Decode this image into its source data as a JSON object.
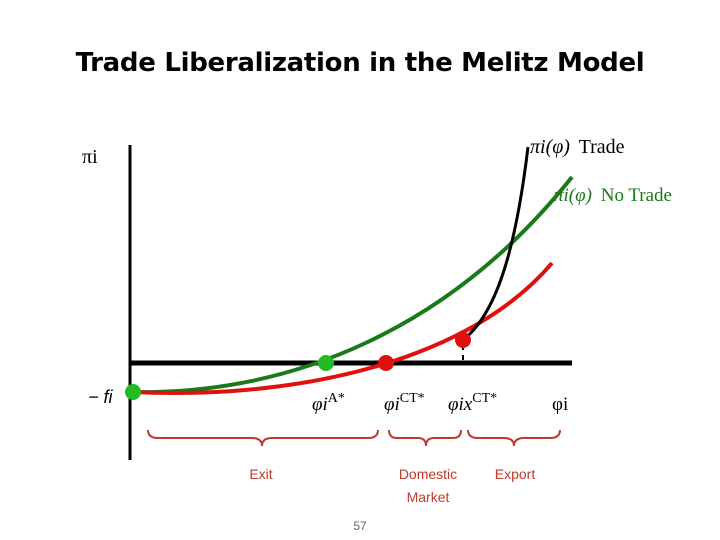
{
  "title": "Trade Liberalization in the Melitz Model",
  "y_axis_label": "πi",
  "y_intercept_label": "− fi",
  "x_axis_label": "φi",
  "curves": {
    "trade": {
      "label_symbol": "πi(φ)",
      "label_text": "Trade",
      "color": "#000000"
    },
    "no_trade": {
      "label_symbol": "πi(φ)",
      "label_text": "No Trade",
      "color": "#1a7a1a"
    },
    "red": {
      "color": "#e01010"
    }
  },
  "cutoffs": {
    "autarky": {
      "symbol": "φi",
      "sup": "A*",
      "color": "#22bb22"
    },
    "closed_trade": {
      "symbol": "φi",
      "sup": "CT*",
      "color": "#e01010"
    },
    "export": {
      "symbol": "φix",
      "sup": "CT*",
      "color": "#e01010"
    },
    "start": {
      "color": "#22bb22"
    }
  },
  "regions": {
    "exit": "Exit",
    "domestic_line1": "Domestic",
    "domestic_line2": "Market",
    "export": "Export",
    "color": "#c0392b"
  },
  "page_number": "57"
}
